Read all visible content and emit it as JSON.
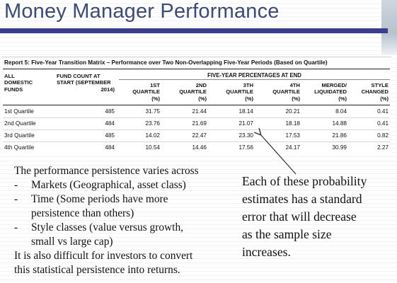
{
  "slide": {
    "title": "Money Manager Performance"
  },
  "report": {
    "title": "Report 5: Five-Year Transition Matrix – Performance over Two Non-Overlapping Five-Year Periods (Based on Quartile)",
    "group_header": "FIVE-YEAR PERCENTAGES AT END",
    "columns": [
      {
        "line1": "ALL",
        "line2": "DOMESTIC",
        "line3": "FUNDS",
        "line4": ""
      },
      {
        "line1": "FUND COUNT AT",
        "line2": "START (SEPTEMBER",
        "line3": "2014)",
        "line4": ""
      },
      {
        "line1": "1ST",
        "line2": "QUARTILE",
        "line3": "(%)",
        "line4": ""
      },
      {
        "line1": "2ND",
        "line2": "QUARTILE",
        "line3": "(%)",
        "line4": ""
      },
      {
        "line1": "3TH",
        "line2": "QUARTILE",
        "line3": "(%)",
        "line4": ""
      },
      {
        "line1": "4TH",
        "line2": "QUARTILE",
        "line3": "(%)",
        "line4": ""
      },
      {
        "line1": "MERGED/",
        "line2": "LIQUIDATED",
        "line3": "(%)",
        "line4": ""
      },
      {
        "line1": "STYLE",
        "line2": "CHANGED",
        "line3": "(%)",
        "line4": ""
      }
    ],
    "rows": [
      [
        "1st Quartile",
        "485",
        "31.75",
        "21.44",
        "18.14",
        "20.21",
        "8.04",
        "0.41"
      ],
      [
        "2nd Quartile",
        "484",
        "23.76",
        "21.69",
        "21.07",
        "18.18",
        "14.88",
        "0.41"
      ],
      [
        "3rd Quartile",
        "485",
        "14.02",
        "22.47",
        "23.30",
        "17.53",
        "21.86",
        "0.82"
      ],
      [
        "4th Quartile",
        "484",
        "10.54",
        "14.46",
        "17.56",
        "24.17",
        "30.99",
        "2.27"
      ]
    ]
  },
  "body": {
    "intro": "The performance persistence varies across",
    "bullets": [
      {
        "marker": "-",
        "text": "Markets (Geographical, asset class)",
        "cont": ""
      },
      {
        "marker": "-",
        "text": "Time (Some periods have more",
        "cont": "persistence than others)"
      },
      {
        "marker": "-",
        "text": "Style classes (value versus growth,",
        "cont": "small vs large cap)"
      }
    ],
    "closing_1": "It is also difficult for investors to convert",
    "closing_2": "this statistical persistence into returns."
  },
  "note": {
    "lines": [
      "Each of these probability",
      "estimates has a standard",
      "error that will decrease",
      "as the sample size",
      "increases."
    ]
  },
  "colors": {
    "title": "#3d4a72",
    "accent_bar": "#3b3e8c"
  }
}
